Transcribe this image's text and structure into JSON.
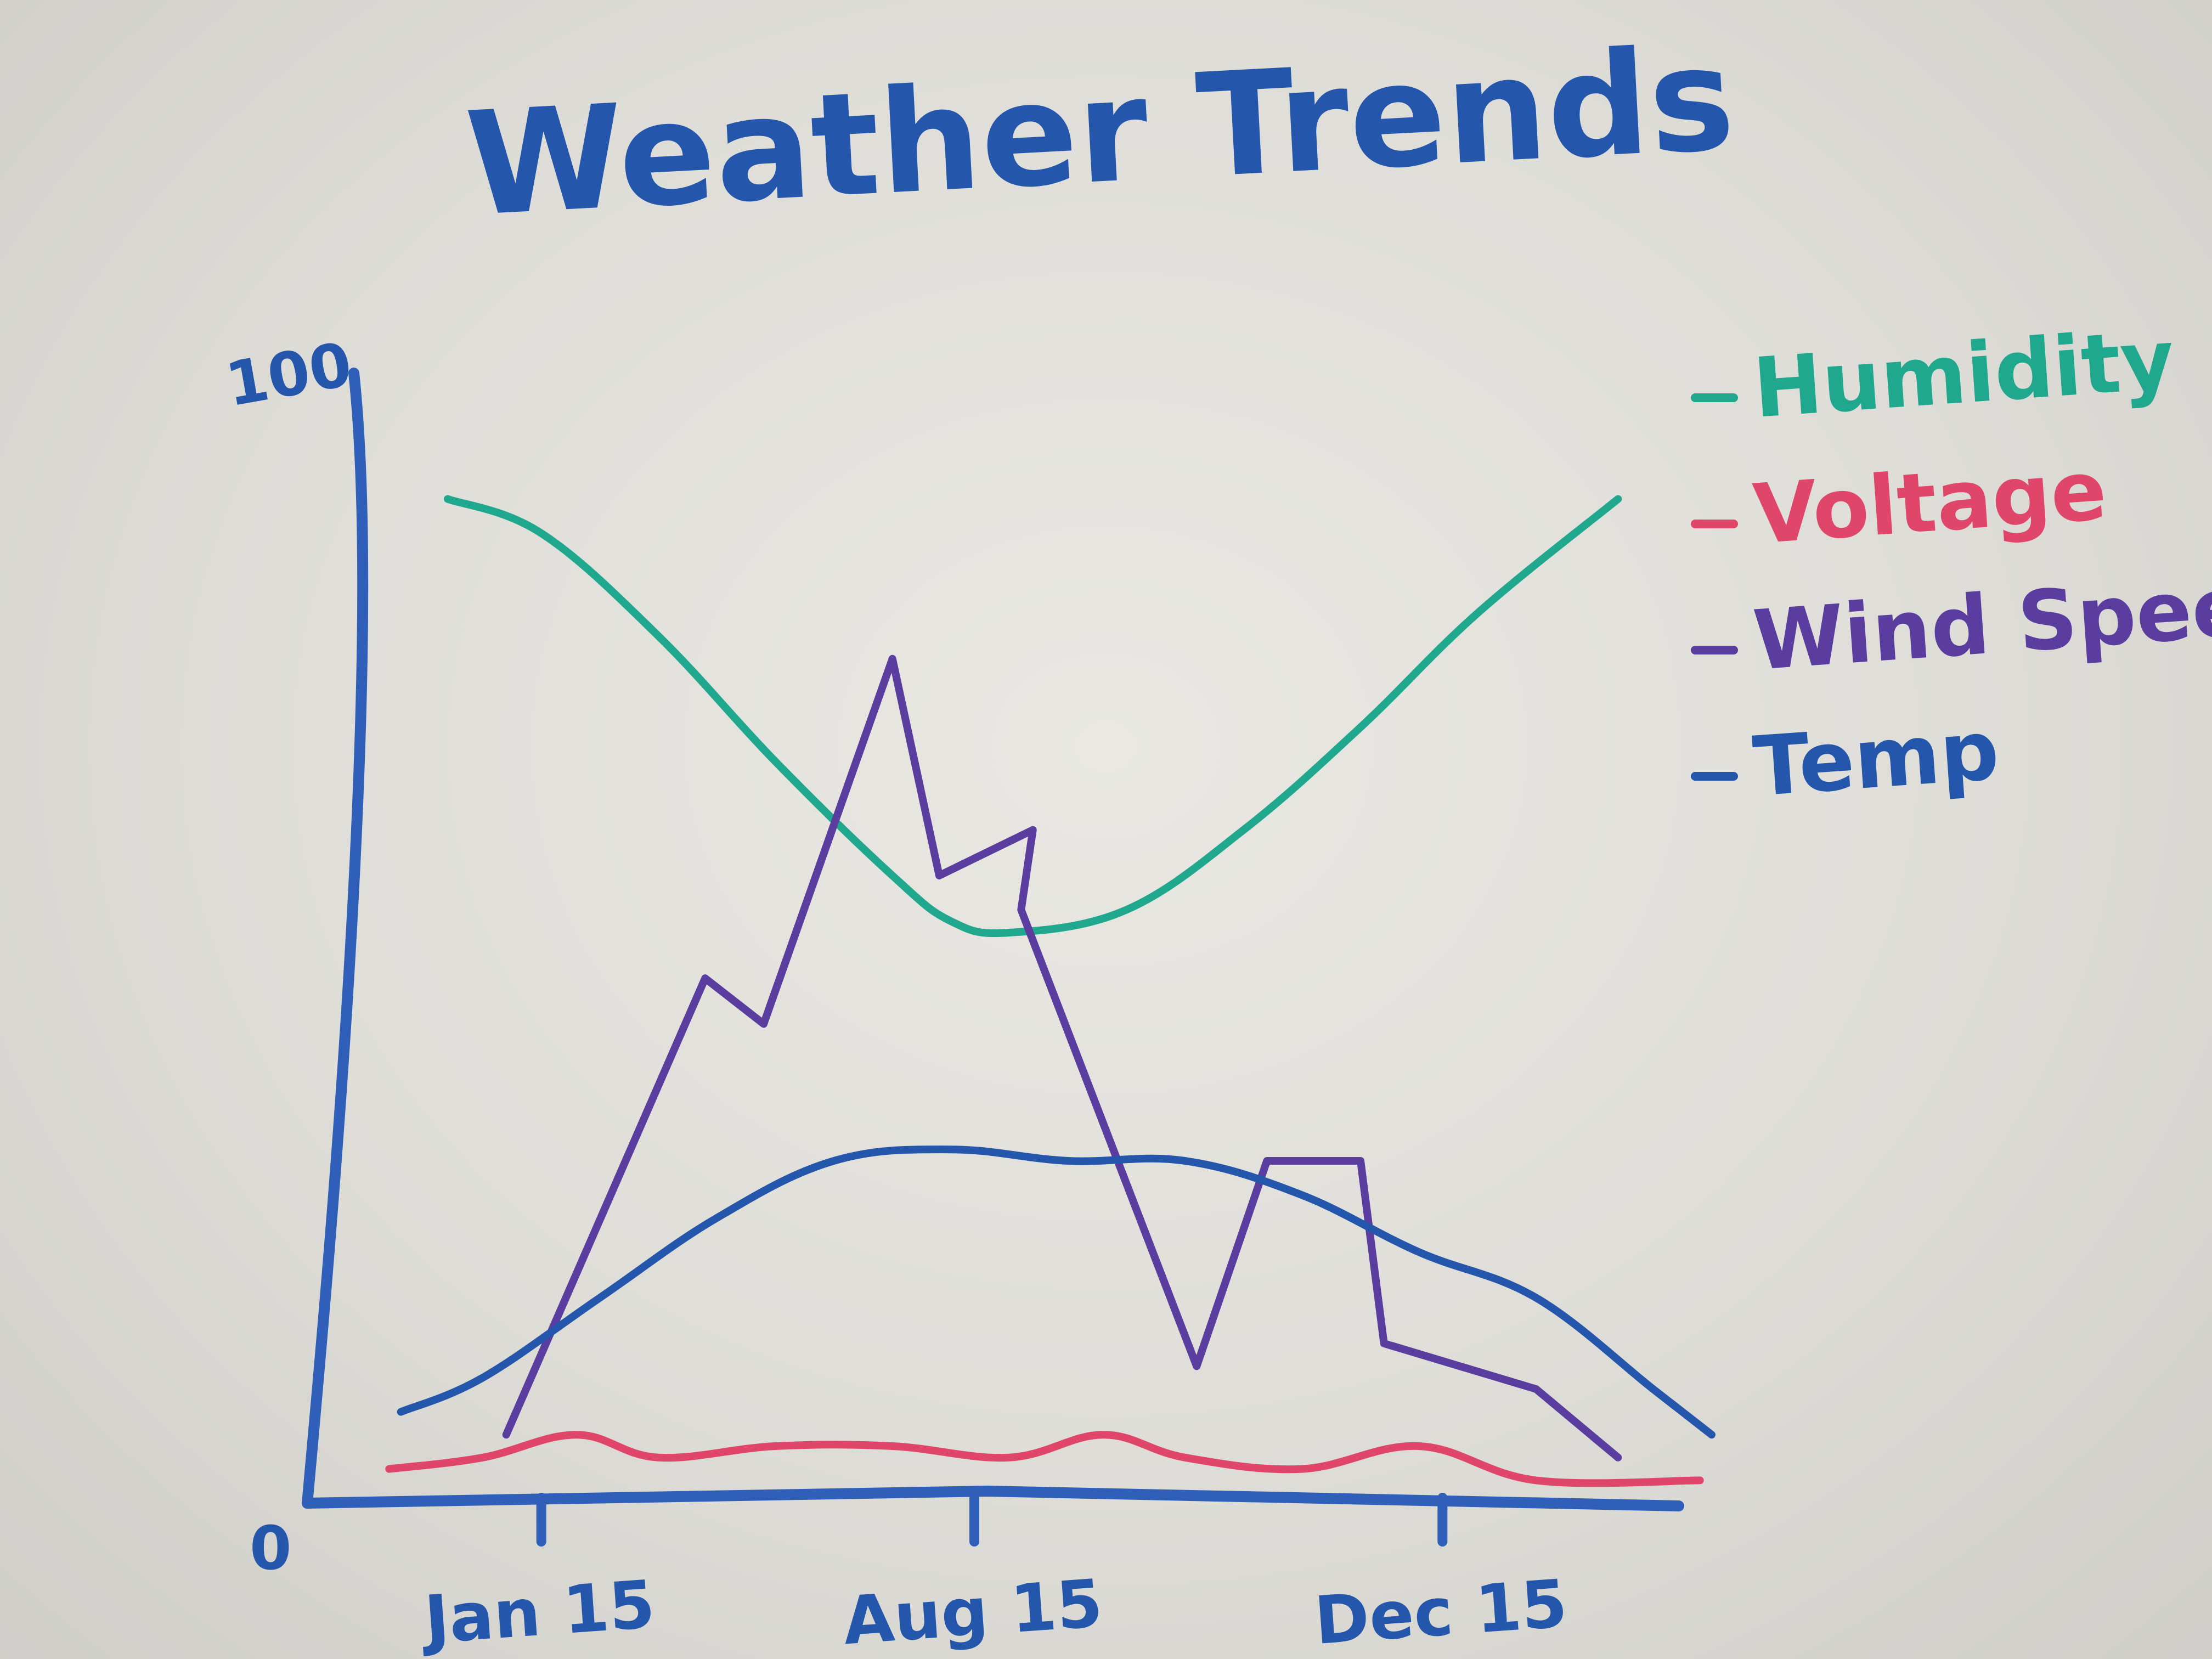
{
  "chart_data": {
    "type": "line",
    "title": "Weather Trends",
    "ylim": [
      0,
      100
    ],
    "y_tick_labels": [
      "0",
      "100"
    ],
    "x_range": [
      0,
      12
    ],
    "x_ticks": [
      {
        "x": 2.0,
        "label": "Jan 15"
      },
      {
        "x": 5.7,
        "label": "Aug 15"
      },
      {
        "x": 9.7,
        "label": "Dec 15"
      }
    ],
    "grid": false,
    "legend": "right",
    "series": [
      {
        "name": "Humidity",
        "color": "#1fa88e",
        "x": [
          1.2,
          2.0,
          3.0,
          4.0,
          5.0,
          5.5,
          6.0,
          7.0,
          8.0,
          9.0,
          10.0,
          11.2
        ],
        "y": [
          88,
          85,
          76,
          65,
          55,
          51,
          50,
          52,
          59,
          68,
          78,
          88
        ]
      },
      {
        "name": "Voltage",
        "color": "#e0466a",
        "x": [
          0.7,
          1.5,
          2.3,
          3.0,
          4.0,
          5.0,
          6.0,
          6.8,
          7.5,
          8.5,
          9.5,
          10.5,
          11.9
        ],
        "y": [
          3,
          4,
          6,
          4,
          5,
          5,
          4,
          6,
          4,
          3,
          5,
          2,
          2
        ]
      },
      {
        "name": "Wind Speed",
        "color": "#5a3d9e",
        "x": [
          1.7,
          3.4,
          3.9,
          5.0,
          5.4,
          6.2,
          6.1,
          7.6,
          8.2,
          9.0,
          9.2,
          10.5,
          11.2
        ],
        "y": [
          6,
          46,
          42,
          74,
          55,
          59,
          52,
          12,
          30,
          30,
          14,
          10,
          4
        ]
      },
      {
        "name": "Temp",
        "color": "#2456ac",
        "x": [
          0.8,
          1.5,
          2.5,
          3.5,
          4.5,
          5.5,
          6.5,
          7.5,
          8.5,
          9.5,
          10.5,
          11.5,
          12.0
        ],
        "y": [
          8,
          11,
          18,
          25,
          30,
          31,
          30,
          30,
          27,
          22,
          18,
          10,
          6
        ]
      }
    ]
  }
}
